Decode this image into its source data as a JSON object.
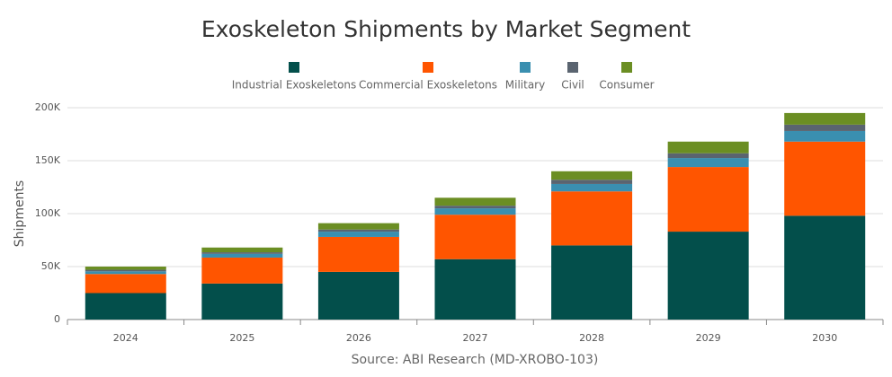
{
  "chart_data": {
    "type": "stacked_bar",
    "title": "Exoskeleton Shipments by Market Segment",
    "y_axis_label": "Shipments",
    "source": "Source: ABI Research (MD-XROBO-103)",
    "categories": [
      "2024",
      "2025",
      "2026",
      "2027",
      "2028",
      "2029",
      "2030"
    ],
    "series": [
      {
        "name": "Industrial Exoskeletons",
        "color": "#034f4b",
        "values": [
          25000,
          34000,
          45000,
          57000,
          70000,
          83000,
          98000
        ]
      },
      {
        "name": "Commercial Exoskeletons",
        "color": "#ff5500",
        "values": [
          18000,
          24500,
          33000,
          42000,
          51000,
          61000,
          70000
        ]
      },
      {
        "name": "Military",
        "color": "#3a8fb0",
        "values": [
          2500,
          3500,
          5000,
          6000,
          7000,
          8500,
          10000
        ]
      },
      {
        "name": "Civil",
        "color": "#5a6470",
        "values": [
          1500,
          1500,
          2000,
          2500,
          4000,
          4500,
          6000
        ]
      },
      {
        "name": "Consumer",
        "color": "#6b8e23",
        "values": [
          3000,
          4500,
          6000,
          7500,
          8000,
          11000,
          11000
        ]
      }
    ],
    "ylim": [
      0,
      200000
    ],
    "yticks": [
      0,
      {
        "value": 50000,
        "label": "50K"
      },
      {
        "value": 100000,
        "label": "100K"
      },
      {
        "value": 150000,
        "label": "150K"
      },
      {
        "value": 200000,
        "label": "200K"
      }
    ],
    "grid": true
  }
}
